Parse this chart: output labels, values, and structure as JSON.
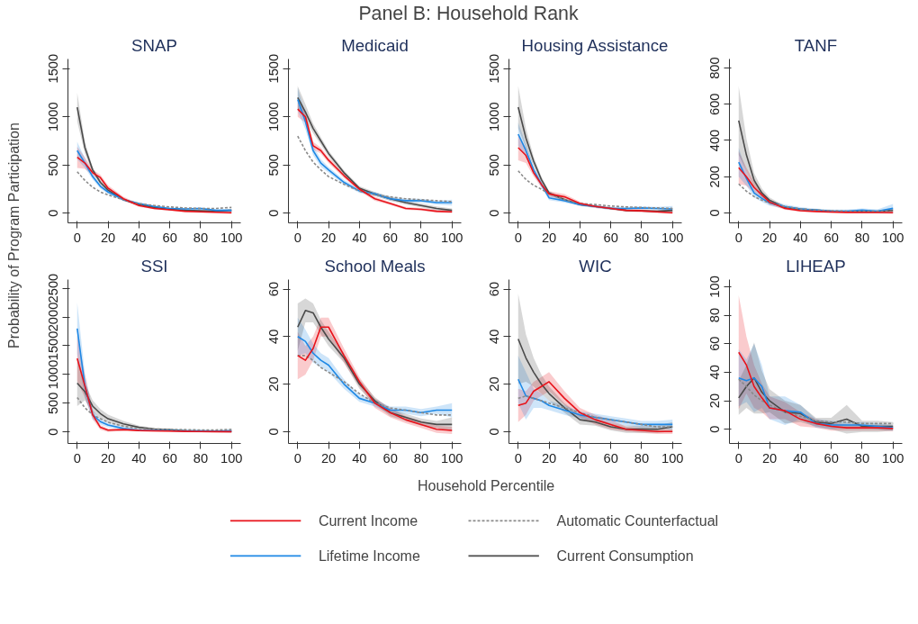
{
  "chart_data": [
    {
      "type": "other",
      "title": "Panel B: Household Rank",
      "annotations": [
        "Household Percentile",
        "Probability of Program Participation"
      ]
    },
    {
      "type": "line",
      "title": "SNAP",
      "legend": "bottom",
      "x": [
        0,
        5,
        10,
        15,
        20,
        30,
        40,
        50,
        60,
        70,
        80,
        90,
        100
      ],
      "xlim": [
        -6,
        106
      ],
      "xticks": [
        0,
        20,
        40,
        60,
        80,
        100
      ],
      "ylim": [
        -100,
        1600
      ],
      "yticks": [
        0,
        500,
        1000,
        1500
      ],
      "series": [
        {
          "name": "Current Income",
          "color": "#e8131b",
          "values": [
            580,
            520,
            420,
            370,
            260,
            150,
            80,
            50,
            35,
            20,
            15,
            10,
            5
          ],
          "lower": [
            470,
            460,
            390,
            340,
            230,
            130,
            65,
            40,
            25,
            10,
            5,
            0,
            -10
          ],
          "upper": [
            690,
            580,
            450,
            400,
            290,
            170,
            95,
            60,
            45,
            30,
            25,
            20,
            20
          ]
        },
        {
          "name": "Automatic Counterfactual",
          "color": "#8a8a8a",
          "line_style": "dashed",
          "values": [
            430,
            340,
            270,
            220,
            190,
            140,
            100,
            80,
            65,
            55,
            50,
            50,
            60
          ]
        },
        {
          "name": "Lifetime Income",
          "color": "#1e88e5",
          "values": [
            650,
            520,
            380,
            280,
            220,
            140,
            100,
            70,
            50,
            45,
            50,
            30,
            30
          ],
          "lower": [
            560,
            470,
            350,
            255,
            200,
            125,
            88,
            60,
            40,
            35,
            38,
            18,
            15
          ],
          "upper": [
            740,
            570,
            410,
            305,
            240,
            155,
            112,
            80,
            60,
            55,
            62,
            42,
            45
          ]
        },
        {
          "name": "Current Consumption",
          "color": "#4a4a4a",
          "values": [
            1100,
            680,
            450,
            320,
            240,
            140,
            90,
            60,
            40,
            30,
            25,
            20,
            30
          ],
          "lower": [
            950,
            620,
            420,
            300,
            225,
            130,
            82,
            52,
            32,
            22,
            17,
            12,
            15
          ],
          "upper": [
            1250,
            740,
            480,
            340,
            255,
            150,
            98,
            68,
            48,
            38,
            33,
            28,
            45
          ]
        }
      ]
    },
    {
      "type": "line",
      "title": "Medicaid",
      "x": [
        0,
        5,
        10,
        15,
        20,
        30,
        40,
        50,
        60,
        70,
        80,
        90,
        100
      ],
      "xlim": [
        -6,
        106
      ],
      "xticks": [
        0,
        20,
        40,
        60,
        80,
        100
      ],
      "ylim": [
        -100,
        1600
      ],
      "yticks": [
        0,
        500,
        1000,
        1500
      ],
      "series": [
        {
          "color": "#e8131b",
          "values": [
            1080,
            1000,
            700,
            650,
            550,
            390,
            250,
            150,
            100,
            50,
            40,
            20,
            15
          ],
          "lower": [
            1000,
            940,
            660,
            620,
            520,
            365,
            230,
            130,
            85,
            35,
            25,
            5,
            0
          ],
          "upper": [
            1160,
            1060,
            740,
            680,
            580,
            415,
            270,
            170,
            115,
            65,
            55,
            35,
            30
          ]
        },
        {
          "color": "#8a8a8a",
          "line_style": "dashed",
          "values": [
            800,
            650,
            530,
            450,
            380,
            300,
            230,
            190,
            170,
            150,
            140,
            130,
            120
          ]
        },
        {
          "color": "#1e88e5",
          "values": [
            1180,
            950,
            650,
            520,
            450,
            320,
            230,
            200,
            150,
            130,
            130,
            110,
            110
          ],
          "lower": [
            1060,
            870,
            600,
            480,
            420,
            295,
            210,
            180,
            130,
            110,
            110,
            90,
            80
          ],
          "upper": [
            1300,
            1030,
            700,
            560,
            480,
            345,
            250,
            220,
            170,
            150,
            150,
            130,
            140
          ]
        },
        {
          "color": "#4a4a4a",
          "values": [
            1200,
            1050,
            880,
            750,
            620,
            420,
            260,
            200,
            150,
            110,
            80,
            50,
            30
          ],
          "lower": [
            1080,
            970,
            830,
            710,
            590,
            395,
            240,
            180,
            130,
            90,
            60,
            30,
            10
          ],
          "upper": [
            1320,
            1130,
            930,
            790,
            650,
            445,
            280,
            220,
            170,
            130,
            100,
            70,
            50
          ]
        }
      ]
    },
    {
      "type": "line",
      "title": "Housing Assistance",
      "x": [
        0,
        5,
        10,
        15,
        20,
        30,
        40,
        50,
        60,
        70,
        80,
        90,
        100
      ],
      "xlim": [
        -6,
        106
      ],
      "xticks": [
        0,
        20,
        40,
        60,
        80,
        100
      ],
      "ylim": [
        -100,
        1600
      ],
      "yticks": [
        0,
        500,
        1000,
        1500
      ],
      "series": [
        {
          "color": "#e8131b",
          "values": [
            680,
            600,
            420,
            300,
            200,
            170,
            100,
            70,
            50,
            30,
            25,
            15,
            5
          ],
          "lower": [
            550,
            520,
            380,
            270,
            170,
            140,
            80,
            55,
            35,
            15,
            10,
            0,
            -10
          ],
          "upper": [
            810,
            680,
            460,
            330,
            230,
            200,
            120,
            85,
            65,
            45,
            40,
            30,
            20
          ]
        },
        {
          "color": "#8a8a8a",
          "line_style": "dashed",
          "values": [
            440,
            350,
            290,
            250,
            200,
            140,
            100,
            90,
            75,
            65,
            60,
            55,
            50
          ]
        },
        {
          "color": "#1e88e5",
          "values": [
            820,
            650,
            450,
            300,
            160,
            130,
            90,
            70,
            50,
            50,
            55,
            50,
            45
          ],
          "lower": [
            700,
            580,
            410,
            270,
            135,
            110,
            75,
            55,
            35,
            35,
            40,
            35,
            15
          ],
          "upper": [
            940,
            720,
            490,
            330,
            185,
            150,
            105,
            85,
            65,
            65,
            70,
            65,
            75
          ]
        },
        {
          "color": "#4a4a4a",
          "values": [
            1100,
            780,
            540,
            350,
            210,
            140,
            90,
            70,
            50,
            30,
            25,
            20,
            30
          ],
          "lower": [
            880,
            680,
            490,
            320,
            190,
            125,
            78,
            60,
            40,
            20,
            15,
            10,
            10
          ],
          "upper": [
            1320,
            880,
            590,
            380,
            230,
            155,
            102,
            80,
            60,
            40,
            35,
            30,
            50
          ]
        }
      ]
    },
    {
      "type": "line",
      "title": "TANF",
      "x": [
        0,
        5,
        10,
        15,
        20,
        30,
        40,
        50,
        60,
        70,
        80,
        90,
        100
      ],
      "xlim": [
        -6,
        106
      ],
      "xticks": [
        0,
        20,
        40,
        60,
        80,
        100
      ],
      "ylim": [
        -55,
        850
      ],
      "yticks": [
        0,
        200,
        400,
        600,
        800
      ],
      "series": [
        {
          "color": "#e8131b",
          "values": [
            250,
            200,
            140,
            100,
            60,
            25,
            12,
            8,
            5,
            3,
            2,
            2,
            2
          ],
          "lower": [
            160,
            150,
            110,
            80,
            45,
            17,
            6,
            3,
            0,
            -2,
            -3,
            -3,
            -6
          ],
          "upper": [
            340,
            250,
            170,
            120,
            75,
            33,
            18,
            13,
            10,
            8,
            7,
            7,
            10
          ]
        },
        {
          "color": "#8a8a8a",
          "line_style": "dashed",
          "values": [
            160,
            120,
            90,
            70,
            55,
            35,
            22,
            15,
            12,
            10,
            10,
            10,
            10
          ]
        },
        {
          "color": "#1e88e5",
          "values": [
            280,
            190,
            110,
            80,
            55,
            35,
            22,
            15,
            10,
            10,
            15,
            10,
            25
          ],
          "lower": [
            200,
            150,
            85,
            60,
            40,
            23,
            12,
            7,
            2,
            2,
            5,
            0,
            0
          ],
          "upper": [
            360,
            230,
            135,
            100,
            70,
            47,
            32,
            23,
            18,
            18,
            25,
            20,
            50
          ]
        },
        {
          "color": "#4a4a4a",
          "values": [
            510,
            320,
            180,
            110,
            70,
            30,
            20,
            15,
            10,
            8,
            8,
            8,
            15
          ],
          "lower": [
            320,
            230,
            140,
            85,
            55,
            22,
            14,
            10,
            5,
            3,
            3,
            3,
            5
          ],
          "upper": [
            700,
            410,
            220,
            135,
            85,
            38,
            26,
            20,
            15,
            13,
            13,
            13,
            25
          ]
        }
      ]
    },
    {
      "type": "line",
      "title": "SSI",
      "x": [
        0,
        5,
        10,
        15,
        20,
        30,
        40,
        50,
        60,
        70,
        80,
        90,
        100
      ],
      "xlim": [
        -6,
        106
      ],
      "xticks": [
        0,
        20,
        40,
        60,
        80,
        100
      ],
      "ylim": [
        -200,
        2650
      ],
      "yticks": [
        0,
        500,
        1000,
        1500,
        2000,
        2500
      ],
      "series": [
        {
          "color": "#e8131b",
          "values": [
            1280,
            800,
            300,
            80,
            30,
            40,
            25,
            20,
            15,
            10,
            8,
            5,
            5
          ],
          "lower": [
            880,
            600,
            220,
            40,
            0,
            20,
            10,
            5,
            0,
            -5,
            -7,
            -10,
            -15
          ],
          "upper": [
            1680,
            1000,
            380,
            120,
            60,
            60,
            40,
            35,
            30,
            25,
            23,
            20,
            25
          ]
        },
        {
          "color": "#8a8a8a",
          "line_style": "dashed",
          "values": [
            600,
            420,
            300,
            230,
            170,
            100,
            60,
            50,
            45,
            40,
            35,
            35,
            45
          ]
        },
        {
          "color": "#1e88e5",
          "values": [
            1800,
            800,
            300,
            180,
            120,
            60,
            30,
            25,
            25,
            20,
            20,
            15,
            20
          ],
          "lower": [
            1350,
            600,
            220,
            130,
            80,
            35,
            15,
            10,
            10,
            5,
            5,
            0,
            -10
          ],
          "upper": [
            2250,
            1000,
            380,
            230,
            160,
            85,
            45,
            40,
            40,
            35,
            35,
            30,
            50
          ]
        },
        {
          "color": "#4a4a4a",
          "values": [
            850,
            700,
            450,
            320,
            230,
            140,
            80,
            50,
            40,
            20,
            15,
            10,
            10
          ],
          "lower": [
            450,
            550,
            350,
            240,
            160,
            90,
            50,
            30,
            20,
            5,
            0,
            -5,
            -10
          ],
          "upper": [
            1250,
            850,
            550,
            400,
            300,
            190,
            110,
            70,
            60,
            35,
            30,
            25,
            30
          ]
        }
      ]
    },
    {
      "type": "line",
      "title": "School Meals",
      "x": [
        0,
        5,
        10,
        15,
        20,
        30,
        40,
        50,
        60,
        70,
        80,
        90,
        100
      ],
      "xlim": [
        -6,
        106
      ],
      "xticks": [
        0,
        20,
        40,
        60,
        80,
        100
      ],
      "ylim": [
        -5,
        64
      ],
      "yticks": [
        0,
        20,
        40,
        60
      ],
      "series": [
        {
          "color": "#e8131b",
          "values": [
            32,
            30,
            35,
            44,
            44,
            32,
            21,
            12,
            8,
            5,
            3,
            1,
            0.5
          ],
          "lower": [
            22,
            24,
            30,
            40,
            40,
            29,
            19,
            10,
            6,
            3.5,
            1.5,
            -0.5,
            -1
          ],
          "upper": [
            42,
            36,
            40,
            48,
            48,
            35,
            23,
            14,
            10,
            6.5,
            4.5,
            2.5,
            2
          ]
        },
        {
          "color": "#8a8a8a",
          "line_style": "dashed",
          "values": [
            32,
            32,
            30,
            27,
            25,
            21,
            16,
            12,
            10,
            9,
            8,
            7,
            7
          ]
        },
        {
          "color": "#1e88e5",
          "values": [
            40,
            38,
            33,
            30,
            28,
            20,
            14,
            12,
            9,
            9,
            8,
            9,
            9
          ],
          "lower": [
            32,
            33,
            29,
            27,
            25,
            18,
            12.5,
            10.5,
            7.5,
            7.5,
            6.5,
            7.5,
            6
          ],
          "upper": [
            48,
            43,
            37,
            33,
            31,
            22,
            15.5,
            13.5,
            10.5,
            10.5,
            9.5,
            10.5,
            12
          ]
        },
        {
          "color": "#4a4a4a",
          "values": [
            44,
            51,
            50,
            44,
            39,
            31,
            20,
            13,
            8,
            6,
            4,
            3,
            3
          ],
          "lower": [
            34,
            46,
            46,
            41,
            36,
            29,
            18,
            11.5,
            6.5,
            4.5,
            2.5,
            1.5,
            0
          ],
          "upper": [
            54,
            56,
            54,
            47,
            42,
            33,
            22,
            14.5,
            9.5,
            7.5,
            5.5,
            4.5,
            6
          ]
        }
      ]
    },
    {
      "type": "line",
      "title": "WIC",
      "x": [
        0,
        5,
        10,
        15,
        20,
        30,
        40,
        50,
        60,
        70,
        80,
        90,
        100
      ],
      "xlim": [
        -6,
        106
      ],
      "xticks": [
        0,
        20,
        40,
        60,
        80,
        100
      ],
      "ylim": [
        -5,
        64
      ],
      "yticks": [
        0,
        20,
        40,
        60
      ],
      "series": [
        {
          "color": "#e8131b",
          "values": [
            11,
            12,
            17,
            19,
            21,
            14,
            8,
            5,
            3,
            1,
            0.5,
            0,
            0
          ],
          "lower": [
            4,
            7,
            13,
            15,
            17,
            11,
            6,
            3,
            1,
            0,
            -0.5,
            -1,
            -1
          ],
          "upper": [
            18,
            17,
            21,
            23,
            25,
            17,
            10,
            7,
            5,
            2,
            1.5,
            1,
            1
          ]
        },
        {
          "color": "#8a8a8a",
          "line_style": "dashed",
          "values": [
            14,
            15,
            14,
            13,
            12,
            10,
            8,
            6,
            5,
            4,
            3,
            2,
            2
          ]
        },
        {
          "color": "#1e88e5",
          "values": [
            22,
            15,
            14,
            13,
            11,
            9,
            7,
            6,
            5,
            4,
            3,
            3,
            3
          ],
          "lower": [
            12,
            5,
            10,
            10,
            9,
            7,
            5.5,
            4.5,
            3.5,
            2.5,
            1.5,
            1.5,
            1
          ],
          "upper": [
            32,
            25,
            18,
            16,
            13,
            11,
            8.5,
            7.5,
            6.5,
            5.5,
            4.5,
            4.5,
            5
          ]
        },
        {
          "color": "#4a4a4a",
          "values": [
            39,
            31,
            25,
            20,
            16,
            10,
            5,
            4,
            2,
            1,
            1,
            1,
            2
          ],
          "lower": [
            20,
            21,
            19,
            16,
            13,
            8,
            3,
            2.5,
            0.5,
            -0.5,
            -0.5,
            -0.5,
            0
          ],
          "upper": [
            58,
            41,
            31,
            24,
            19,
            12,
            7,
            5.5,
            3.5,
            2.5,
            2.5,
            2.5,
            4
          ]
        }
      ]
    },
    {
      "type": "line",
      "title": "LIHEAP",
      "x": [
        0,
        5,
        10,
        15,
        20,
        30,
        40,
        50,
        60,
        70,
        80,
        90,
        100
      ],
      "xlim": [
        -6,
        106
      ],
      "xticks": [
        0,
        20,
        40,
        60,
        80,
        100
      ],
      "ylim": [
        -10,
        105
      ],
      "yticks": [
        0,
        20,
        40,
        60,
        80,
        100
      ],
      "series": [
        {
          "color": "#e8131b",
          "values": [
            54,
            45,
            30,
            22,
            15,
            13,
            7,
            4,
            2,
            1,
            1,
            1,
            0.5
          ],
          "lower": [
            14,
            25,
            15,
            12,
            7,
            7,
            2,
            1,
            -1,
            -1,
            -1,
            -1,
            -1.5
          ],
          "upper": [
            94,
            65,
            45,
            32,
            23,
            19,
            12,
            7,
            5,
            3,
            3,
            3,
            2.5
          ]
        },
        {
          "color": "#8a8a8a",
          "line_style": "dashed",
          "values": [
            35,
            30,
            24,
            20,
            17,
            12,
            9,
            6,
            5,
            5,
            4,
            4,
            4
          ]
        },
        {
          "color": "#1e88e5",
          "values": [
            36,
            34,
            36,
            30,
            15,
            13,
            12,
            4,
            3,
            3,
            3,
            2,
            1
          ],
          "lower": [
            16,
            19,
            12,
            15,
            7,
            3,
            7,
            1,
            0,
            1,
            1,
            0,
            -1
          ],
          "upper": [
            56,
            49,
            60,
            45,
            23,
            23,
            17,
            7,
            6,
            5,
            5,
            4,
            3
          ]
        },
        {
          "color": "#4a4a4a",
          "values": [
            22,
            30,
            36,
            26,
            20,
            12,
            11,
            5,
            4,
            7,
            2,
            2,
            2
          ],
          "lower": [
            10,
            15,
            11,
            11,
            12,
            4,
            5,
            2,
            0,
            -3,
            -2,
            -2,
            -1
          ],
          "upper": [
            34,
            45,
            61,
            41,
            28,
            20,
            17,
            8,
            8,
            17,
            6,
            6,
            5
          ]
        }
      ]
    }
  ]
}
